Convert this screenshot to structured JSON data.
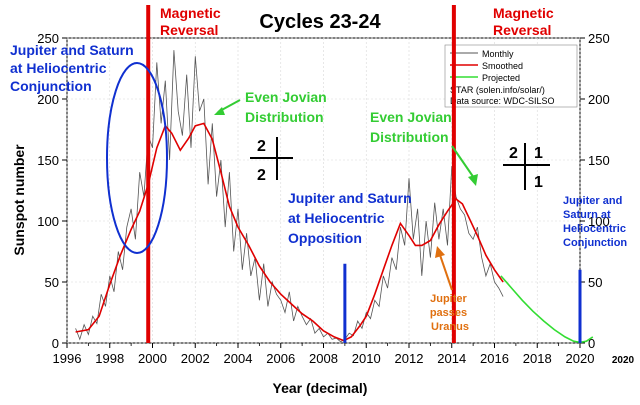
{
  "chart_data": {
    "type": "line",
    "title": "Cycles 23-24",
    "xlabel": "Year (decimal)",
    "ylabel": "Sunspot number",
    "xlim": [
      1996,
      2020
    ],
    "ylim": [
      0,
      250
    ],
    "x_ticks": [
      "1996",
      "1998",
      "2000",
      "2002",
      "2004",
      "2006",
      "2008",
      "2010",
      "2012",
      "2014",
      "2016",
      "2018",
      "2020"
    ],
    "y_ticks": [
      "0",
      "50",
      "100",
      "150",
      "200",
      "250"
    ],
    "extra_x_label": "2020",
    "grid": true,
    "legend": {
      "position": "top-right",
      "entries": [
        "Monthly",
        "Smoothed",
        "Projected"
      ],
      "source_lines": [
        "STAR (solen.info/solar/)",
        "Data source: WDC-SILSO"
      ]
    },
    "colors": {
      "monthly": "#555555",
      "smoothed": "#e00000",
      "projected": "#33dd33",
      "reversal": "#e00000",
      "blue_marker": "#1030d0",
      "blue_text": "#1030d0",
      "green_text": "#33cc33",
      "orange_text": "#e07010"
    },
    "series": [
      {
        "name": "Smoothed",
        "x": [
          1996.4,
          1997.0,
          1997.5,
          1998.0,
          1998.5,
          1999.0,
          1999.4,
          1999.8,
          2000.2,
          2000.6,
          2000.9,
          2001.3,
          2001.7,
          2002.0,
          2002.4,
          2002.8,
          2003.2,
          2003.6,
          2004.0,
          2004.5,
          2005.0,
          2005.5,
          2006.0,
          2006.5,
          2007.0,
          2007.5,
          2008.0,
          2008.5,
          2008.95,
          2009.3,
          2009.7,
          2010.0,
          2010.4,
          2010.8,
          2011.2,
          2011.6,
          2012.0,
          2012.3,
          2012.6,
          2013.0,
          2013.4,
          2013.8,
          2014.2,
          2014.5,
          2014.8,
          2015.2,
          2015.6,
          2016.0,
          2016.4
        ],
        "y": [
          9,
          11,
          22,
          48,
          72,
          93,
          108,
          130,
          160,
          178,
          172,
          158,
          168,
          178,
          180,
          167,
          140,
          112,
          95,
          80,
          63,
          50,
          40,
          32,
          24,
          18,
          10,
          5,
          2,
          5,
          14,
          22,
          40,
          60,
          80,
          98,
          88,
          80,
          80,
          84,
          97,
          108,
          118,
          114,
          103,
          88,
          72,
          60,
          50
        ]
      },
      {
        "name": "Monthly",
        "x": [
          1996.4,
          1996.6,
          1996.8,
          1997.0,
          1997.2,
          1997.4,
          1997.6,
          1997.8,
          1998.0,
          1998.2,
          1998.4,
          1998.6,
          1998.8,
          1999.0,
          1999.2,
          1999.4,
          1999.6,
          1999.8,
          2000.0,
          2000.2,
          2000.4,
          2000.6,
          2000.8,
          2001.0,
          2001.2,
          2001.4,
          2001.6,
          2001.8,
          2002.0,
          2002.2,
          2002.4,
          2002.6,
          2002.8,
          2003.0,
          2003.2,
          2003.4,
          2003.6,
          2003.8,
          2004.0,
          2004.2,
          2004.4,
          2004.6,
          2004.8,
          2005.0,
          2005.2,
          2005.4,
          2005.6,
          2005.8,
          2006.0,
          2006.2,
          2006.4,
          2006.6,
          2006.8,
          2007.0,
          2007.2,
          2007.4,
          2007.6,
          2007.8,
          2008.0,
          2008.2,
          2008.4,
          2008.6,
          2008.8,
          2009.0,
          2009.2,
          2009.4,
          2009.6,
          2009.8,
          2010.0,
          2010.2,
          2010.4,
          2010.6,
          2010.8,
          2011.0,
          2011.2,
          2011.4,
          2011.6,
          2011.8,
          2012.0,
          2012.2,
          2012.4,
          2012.6,
          2012.8,
          2013.0,
          2013.2,
          2013.4,
          2013.6,
          2013.8,
          2014.0,
          2014.2,
          2014.4,
          2014.6,
          2014.8,
          2015.0,
          2015.2,
          2015.4,
          2015.6,
          2015.8,
          2016.0,
          2016.2,
          2016.4
        ],
        "y": [
          12,
          3,
          15,
          7,
          22,
          16,
          40,
          30,
          55,
          42,
          75,
          60,
          95,
          110,
          85,
          140,
          120,
          170,
          160,
          230,
          180,
          215,
          150,
          240,
          190,
          170,
          220,
          160,
          235,
          190,
          200,
          130,
          180,
          120,
          150,
          95,
          140,
          75,
          110,
          60,
          90,
          55,
          70,
          35,
          65,
          30,
          50,
          40,
          35,
          25,
          42,
          18,
          30,
          22,
          15,
          20,
          8,
          12,
          5,
          8,
          3,
          4,
          1,
          3,
          8,
          6,
          18,
          12,
          25,
          20,
          35,
          30,
          55,
          45,
          70,
          60,
          95,
          80,
          135,
          85,
          110,
          55,
          100,
          70,
          115,
          85,
          110,
          80,
          145,
          120,
          110,
          105,
          90,
          85,
          95,
          70,
          55,
          65,
          50,
          45,
          38
        ]
      },
      {
        "name": "Projected",
        "x": [
          2016.3,
          2016.8,
          2017.3,
          2017.8,
          2018.3,
          2018.8,
          2019.3,
          2019.7,
          2020.0,
          2020.3,
          2020.6
        ],
        "y": [
          55,
          45,
          35,
          26,
          18,
          11,
          5,
          1.5,
          0.5,
          1.5,
          5
        ]
      }
    ],
    "markers": [
      {
        "type": "vertical_line",
        "color": "red",
        "x": 1999.8,
        "label": "Magnetic Reversal"
      },
      {
        "type": "vertical_line",
        "color": "red",
        "x": 2014.1,
        "label": "Magnetic Reversal"
      },
      {
        "type": "vertical_bar",
        "color": "blue",
        "x": 2009.0,
        "y_top": 65
      },
      {
        "type": "vertical_bar",
        "color": "blue",
        "x": 2020.0,
        "y_top": 60
      }
    ],
    "annotations": {
      "magnetic_left": [
        "Magnetic",
        "Reversal"
      ],
      "magnetic_right": [
        "Magnetic",
        "Reversal"
      ],
      "conjunction_left": [
        "Jupiter and Saturn",
        "at Heliocentric",
        "Conjunction"
      ],
      "even_jovian_left": [
        "Even Jovian",
        "Distribution"
      ],
      "even_jovian_right": [
        "Even Jovian",
        "Distribution"
      ],
      "opposition": [
        "Jupiter and Saturn",
        "at Heliocentric",
        "Opposition"
      ],
      "conjunction_right": [
        "Jupiter and",
        "Saturn at",
        "Heliocentric",
        "Conjunction"
      ],
      "uranus": [
        "Jupiter",
        "passes",
        "Uranus"
      ],
      "fraction_left": {
        "top": "2",
        "bottom": "2"
      },
      "fraction_right": {
        "top_left": "2",
        "top_right": "1",
        "bottom": "1"
      }
    }
  }
}
